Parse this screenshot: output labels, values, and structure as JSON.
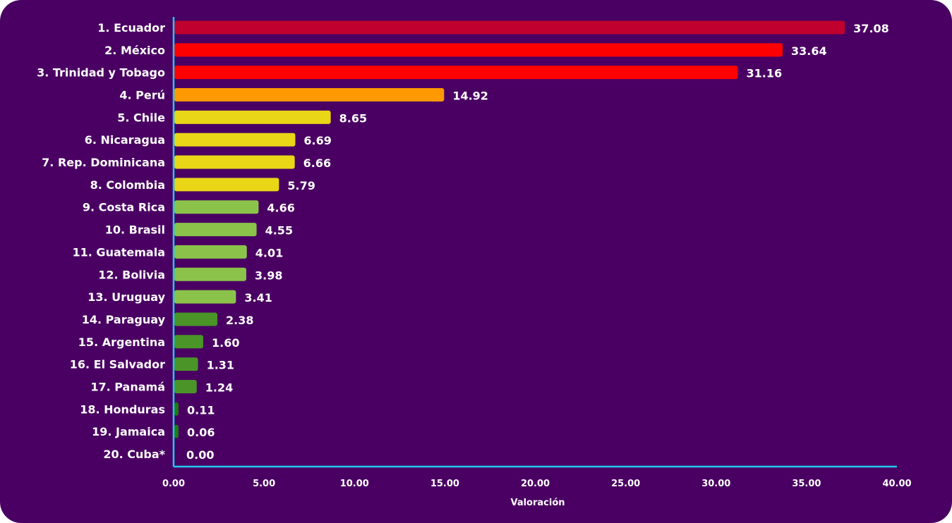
{
  "chart_data": {
    "type": "bar",
    "orientation": "horizontal",
    "categories": [
      "1. Ecuador",
      "2. México",
      "3. Trinidad y Tobago",
      "4. Perú",
      "5. Chile",
      "6. Nicaragua",
      "7. Rep. Dominicana",
      "8. Colombia",
      "9. Costa Rica",
      "10. Brasil",
      "11. Guatemala",
      "12. Bolivia",
      "13. Uruguay",
      "14. Paraguay",
      "15. Argentina",
      "16. El Salvador",
      "17. Panamá",
      "18. Honduras",
      "19. Jamaica",
      "20. Cuba*"
    ],
    "values": [
      37.08,
      33.64,
      31.16,
      14.92,
      8.65,
      6.69,
      6.66,
      5.79,
      4.66,
      4.55,
      4.01,
      3.98,
      3.41,
      2.38,
      1.6,
      1.31,
      1.24,
      0.11,
      0.06,
      0.0
    ],
    "value_labels": [
      "37.08",
      "33.64",
      "31.16",
      "14.92",
      "8.65",
      "6.69",
      "6.66",
      "5.79",
      "4.66",
      "4.55",
      "4.01",
      "3.98",
      "3.41",
      "2.38",
      "1.60",
      "1.31",
      "1.24",
      "0.11",
      "0.06",
      "0.00"
    ],
    "bar_colors": [
      "#c0002e",
      "#ff0000",
      "#ff0000",
      "#ff9900",
      "#e8d617",
      "#e8d617",
      "#e8d617",
      "#e8d617",
      "#8bc34a",
      "#8bc34a",
      "#8bc34a",
      "#8bc34a",
      "#8bc34a",
      "#4a9428",
      "#4a9428",
      "#4a9428",
      "#4a9428",
      "#237a12",
      "#237a12",
      "#237a12"
    ],
    "xlabel": "Valoración",
    "ylabel": "",
    "xlim": [
      0,
      40
    ],
    "xticks": [
      "0.00",
      "5.00",
      "10.00",
      "15.00",
      "20.00",
      "25.00",
      "30.00",
      "35.00",
      "40.00"
    ],
    "grid": false,
    "colors": {
      "background": "#4a0063",
      "axis": "#1ec8ef",
      "text": "#ffffff"
    }
  }
}
